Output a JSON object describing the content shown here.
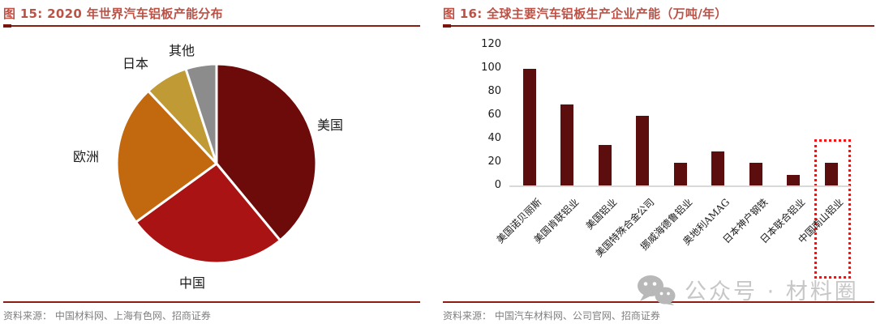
{
  "page": {
    "background": "#ffffff",
    "rule_color": "#8b1d13",
    "title_color": "#bc5246",
    "source_color": "#7f7f7f"
  },
  "left_panel": {
    "title": "图 15: 2020 年世界汽车铝板产能分布",
    "source": "资料来源： 中国材料网、上海有色网、招商证券"
  },
  "right_panel": {
    "title": "图 16: 全球主要汽车铝板生产企业产能（万吨/年）",
    "source": "资料来源： 中国汽车材料网、公司官网、招商证券"
  },
  "watermark": {
    "icon": "wechat-chat-bubbles-icon",
    "text": "公众号 · 材料圈",
    "color": "#c7c7c7"
  },
  "chart_data": [
    {
      "id": "fig15-pie",
      "type": "pie",
      "title": "图 15: 2020 年世界汽车铝板产能分布",
      "value_basis": "percent share estimated from arc angles",
      "start_angle_deg": 0,
      "direction": "clockwise",
      "segments": [
        {
          "label": "美国",
          "value": 39,
          "color": "#6d0b0b"
        },
        {
          "label": "中国",
          "value": 26,
          "color": "#a91313"
        },
        {
          "label": "欧洲",
          "value": 23,
          "color": "#c2690f"
        },
        {
          "label": "日本",
          "value": 7,
          "color": "#c09a35"
        },
        {
          "label": "其他",
          "value": 5,
          "color": "#8c8c8c"
        }
      ],
      "slice_gap_color": "#ffffff",
      "legend": "none (direct labels around pie)"
    },
    {
      "id": "fig16-bar",
      "type": "bar",
      "title": "图 16: 全球主要汽车铝板生产企业产能（万吨/年）",
      "ylabel": "万吨/年",
      "ylim": [
        0,
        120
      ],
      "yticks": [
        0,
        20,
        40,
        60,
        80,
        100,
        120
      ],
      "grid": "off",
      "bar_color": "#5c0e0e",
      "categories": [
        "美国诺贝丽斯",
        "美国肯联铝业",
        "美国铝业",
        "美国特殊合金公司",
        "挪威海德鲁铝业",
        "奥地利AMAG",
        "日本神户钢铁",
        "日本联合铝业",
        "中国南山铝业"
      ],
      "values": [
        100,
        70,
        35,
        60,
        20,
        30,
        20,
        10,
        20
      ],
      "highlight": {
        "category": "中国南山铝业",
        "style": "red dotted rectangle",
        "color": "#f01414"
      }
    }
  ]
}
